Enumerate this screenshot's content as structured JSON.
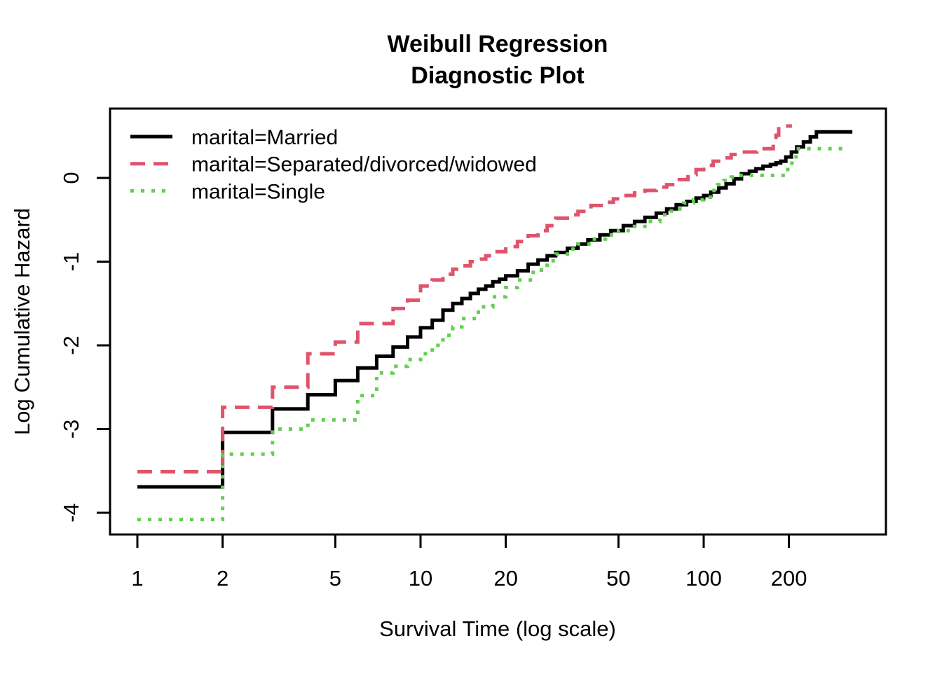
{
  "title": {
    "line1": "Weibull Regression",
    "line2": "Diagnostic Plot"
  },
  "axes": {
    "x": {
      "label": "Survival Time (log scale)",
      "scale": "log10",
      "ticks": [
        "1",
        "2",
        "5",
        "10",
        "20",
        "50",
        "100",
        "200"
      ]
    },
    "y": {
      "label": "Log Cumulative Hazard",
      "scale": "linear",
      "ticks": [
        "0",
        "-1",
        "-2",
        "-3",
        "-4"
      ]
    }
  },
  "legend": {
    "position": "top-left",
    "items": [
      {
        "label": "marital=Married",
        "color": "#000000",
        "line_style": "solid"
      },
      {
        "label": "marital=Separated/divorced/widowed",
        "color": "#DF536B",
        "line_style": "dashed"
      },
      {
        "label": "marital=Single",
        "color": "#61D04F",
        "line_style": "dotted"
      }
    ]
  },
  "colors": {
    "background": "#ffffff",
    "axis": "#000000",
    "married": "#000000",
    "separated": "#DF536B",
    "single": "#61D04F"
  },
  "chart_data": {
    "type": "line",
    "subtype": "step-post",
    "title": "Weibull Regression Diagnostic Plot",
    "xlabel": "Survival Time (log scale)",
    "ylabel": "Log Cumulative Hazard",
    "x_scale": "log10",
    "xlim": [
      0.8,
      440
    ],
    "ylim": [
      -4.26,
      0.83
    ],
    "x_ticks": [
      1,
      2,
      5,
      10,
      20,
      50,
      100,
      200
    ],
    "y_ticks": [
      0,
      -1,
      -2,
      -3,
      -4
    ],
    "grid": false,
    "legend_position": "top-left",
    "series": [
      {
        "name": "marital=Married",
        "color": "#000000",
        "line_style": "solid",
        "end_x": 335,
        "points": [
          [
            1,
            -3.69
          ],
          [
            2,
            -3.04
          ],
          [
            3,
            -2.76
          ],
          [
            4,
            -2.59
          ],
          [
            5,
            -2.42
          ],
          [
            6,
            -2.27
          ],
          [
            7,
            -2.13
          ],
          [
            8,
            -2.02
          ],
          [
            9,
            -1.9
          ],
          [
            10,
            -1.79
          ],
          [
            11,
            -1.7
          ],
          [
            12,
            -1.58
          ],
          [
            13,
            -1.5
          ],
          [
            14,
            -1.44
          ],
          [
            15,
            -1.38
          ],
          [
            16,
            -1.33
          ],
          [
            17,
            -1.29
          ],
          [
            18,
            -1.24
          ],
          [
            19,
            -1.21
          ],
          [
            20,
            -1.17
          ],
          [
            22,
            -1.11
          ],
          [
            24,
            -1.03
          ],
          [
            26,
            -0.98
          ],
          [
            28,
            -0.93
          ],
          [
            30,
            -0.89
          ],
          [
            33,
            -0.84
          ],
          [
            36,
            -0.79
          ],
          [
            39,
            -0.74
          ],
          [
            43,
            -0.68
          ],
          [
            47,
            -0.63
          ],
          [
            52,
            -0.57
          ],
          [
            57,
            -0.52
          ],
          [
            62,
            -0.47
          ],
          [
            68,
            -0.42
          ],
          [
            74,
            -0.37
          ],
          [
            80,
            -0.32
          ],
          [
            87,
            -0.28
          ],
          [
            94,
            -0.24
          ],
          [
            100,
            -0.21
          ],
          [
            106,
            -0.17
          ],
          [
            113,
            -0.12
          ],
          [
            120,
            -0.07
          ],
          [
            128,
            -0.01
          ],
          [
            136,
            0.05
          ],
          [
            145,
            0.08
          ],
          [
            153,
            0.11
          ],
          [
            162,
            0.14
          ],
          [
            172,
            0.16
          ],
          [
            180,
            0.18
          ],
          [
            187,
            0.2
          ],
          [
            195,
            0.25
          ],
          [
            204,
            0.31
          ],
          [
            213,
            0.37
          ],
          [
            225,
            0.43
          ],
          [
            238,
            0.49
          ],
          [
            250,
            0.55
          ]
        ]
      },
      {
        "name": "marital=Separated/divorced/widowed",
        "color": "#DF536B",
        "line_style": "dashed",
        "end_x": 205,
        "points": [
          [
            1,
            -3.51
          ],
          [
            2,
            -2.74
          ],
          [
            3,
            -2.5
          ],
          [
            4,
            -2.1
          ],
          [
            5,
            -1.96
          ],
          [
            6,
            -1.74
          ],
          [
            8,
            -1.56
          ],
          [
            9,
            -1.46
          ],
          [
            10,
            -1.29
          ],
          [
            11,
            -1.22
          ],
          [
            12,
            -1.15
          ],
          [
            13,
            -1.09
          ],
          [
            14,
            -1.05
          ],
          [
            15,
            -1.0
          ],
          [
            16,
            -0.97
          ],
          [
            17,
            -0.93
          ],
          [
            18,
            -0.88
          ],
          [
            20,
            -0.82
          ],
          [
            22,
            -0.76
          ],
          [
            24,
            -0.69
          ],
          [
            26,
            -0.63
          ],
          [
            28,
            -0.57
          ],
          [
            30,
            -0.48
          ],
          [
            33,
            -0.44
          ],
          [
            36,
            -0.4
          ],
          [
            40,
            -0.33
          ],
          [
            44,
            -0.29
          ],
          [
            48,
            -0.25
          ],
          [
            52,
            -0.21
          ],
          [
            57,
            -0.18
          ],
          [
            62,
            -0.15
          ],
          [
            68,
            -0.11
          ],
          [
            74,
            -0.08
          ],
          [
            82,
            -0.02
          ],
          [
            88,
            0.04
          ],
          [
            94,
            0.1
          ],
          [
            100,
            0.15
          ],
          [
            108,
            0.2
          ],
          [
            116,
            0.24
          ],
          [
            125,
            0.28
          ],
          [
            136,
            0.31
          ],
          [
            154,
            0.35
          ],
          [
            176,
            0.44
          ],
          [
            180,
            0.51
          ],
          [
            184,
            0.62
          ]
        ]
      },
      {
        "name": "marital=Single",
        "color": "#61D04F",
        "line_style": "dotted",
        "end_x": 321,
        "points": [
          [
            1,
            -4.08
          ],
          [
            2,
            -3.3
          ],
          [
            3,
            -3.0
          ],
          [
            4,
            -2.89
          ],
          [
            6,
            -2.6
          ],
          [
            7,
            -2.33
          ],
          [
            8,
            -2.25
          ],
          [
            9,
            -2.17
          ],
          [
            10,
            -2.1
          ],
          [
            11,
            -2.0
          ],
          [
            12,
            -1.88
          ],
          [
            13,
            -1.78
          ],
          [
            14,
            -1.68
          ],
          [
            16,
            -1.54
          ],
          [
            18,
            -1.42
          ],
          [
            20,
            -1.31
          ],
          [
            22,
            -1.22
          ],
          [
            25,
            -1.1
          ],
          [
            28,
            -0.99
          ],
          [
            30,
            -0.91
          ],
          [
            33,
            -0.85
          ],
          [
            36,
            -0.79
          ],
          [
            40,
            -0.73
          ],
          [
            45,
            -0.68
          ],
          [
            50,
            -0.63
          ],
          [
            55,
            -0.58
          ],
          [
            62,
            -0.52
          ],
          [
            70,
            -0.44
          ],
          [
            77,
            -0.37
          ],
          [
            85,
            -0.3
          ],
          [
            92,
            -0.26
          ],
          [
            100,
            -0.23
          ],
          [
            107,
            -0.15
          ],
          [
            112,
            -0.08
          ],
          [
            118,
            -0.03
          ],
          [
            125,
            0.01
          ],
          [
            130,
            0.03
          ],
          [
            198,
            0.13
          ],
          [
            205,
            0.21
          ],
          [
            212,
            0.35
          ]
        ]
      }
    ]
  }
}
